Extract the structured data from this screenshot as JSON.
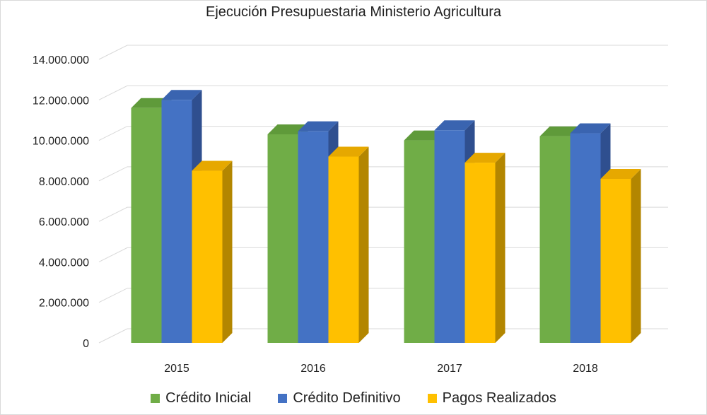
{
  "chart_data": {
    "type": "bar",
    "title": "Ejecución Presupuestaria Ministerio Agricultura",
    "categories": [
      "2015",
      "2016",
      "2017",
      "2018"
    ],
    "series": [
      {
        "name": "Crédito Inicial",
        "color": "#70ad47",
        "top_color": "#5f9a3a",
        "side_color": "#4e7f30",
        "values": [
          11600000,
          10300000,
          10000000,
          10200000
        ]
      },
      {
        "name": "Crédito Definitivo",
        "color": "#4472c4",
        "top_color": "#3a64b0",
        "side_color": "#2f4f8f",
        "values": [
          12000000,
          10450000,
          10500000,
          10350000
        ]
      },
      {
        "name": "Pagos Realizados",
        "color": "#ffc000",
        "top_color": "#e6a800",
        "side_color": "#b38600",
        "values": [
          8500000,
          9200000,
          8900000,
          8100000
        ]
      }
    ],
    "ylim": [
      0,
      14000000
    ],
    "yticks": [
      0,
      2000000,
      4000000,
      6000000,
      8000000,
      10000000,
      12000000,
      14000000
    ],
    "ytick_labels": [
      "0",
      "2.000.000",
      "4.000.000",
      "6.000.000",
      "8.000.000",
      "10.000.000",
      "12.000.000",
      "14.000.000"
    ],
    "xlabel": "",
    "ylabel": "",
    "grid": true,
    "legend_position": "bottom"
  }
}
